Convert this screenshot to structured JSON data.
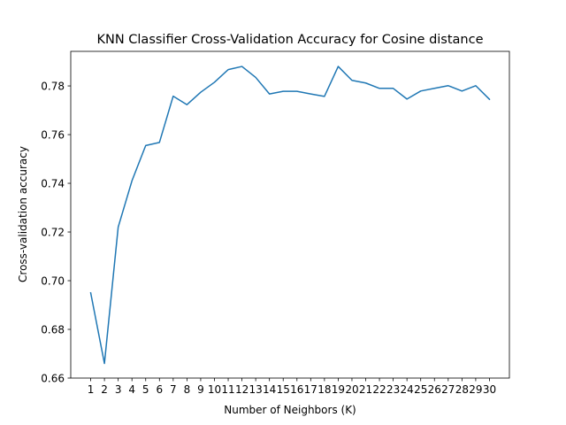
{
  "chart_data": {
    "type": "line",
    "title": "KNN Classifier Cross-Validation Accuracy for Cosine distance",
    "xlabel": "Number of Neighbors (K)",
    "ylabel": "Cross-validation accuracy",
    "x": [
      1,
      2,
      3,
      4,
      5,
      6,
      7,
      8,
      9,
      10,
      11,
      12,
      13,
      14,
      15,
      16,
      17,
      18,
      19,
      20,
      21,
      22,
      23,
      24,
      25,
      26,
      27,
      28,
      29,
      30
    ],
    "series": [
      {
        "values": [
          0.695,
          0.666,
          0.722,
          0.741,
          0.7555,
          0.7568,
          0.7758,
          0.7723,
          0.7774,
          0.7815,
          0.7867,
          0.788,
          0.7835,
          0.7767,
          0.7778,
          0.7778,
          0.7767,
          0.7757,
          0.788,
          0.7823,
          0.7812,
          0.779,
          0.779,
          0.7746,
          0.7779,
          0.779,
          0.7801,
          0.7779,
          0.7801,
          0.7745
        ],
        "color": "#1f77b4"
      }
    ],
    "xticks": [
      "1",
      "2",
      "3",
      "4",
      "5",
      "6",
      "7",
      "8",
      "9",
      "10",
      "11",
      "12",
      "13",
      "14",
      "15",
      "16",
      "17",
      "18",
      "19",
      "20",
      "21",
      "22",
      "23",
      "24",
      "25",
      "26",
      "27",
      "28",
      "29",
      "30"
    ],
    "yticks": [
      "0.66",
      "0.68",
      "0.70",
      "0.72",
      "0.74",
      "0.76",
      "0.78"
    ],
    "ytick_values": [
      0.66,
      0.68,
      0.7,
      0.72,
      0.74,
      0.76,
      0.78
    ],
    "xlim": [
      -0.45,
      31.45
    ],
    "ylim": [
      0.66,
      0.7942
    ],
    "grid": false,
    "legend": "none"
  }
}
